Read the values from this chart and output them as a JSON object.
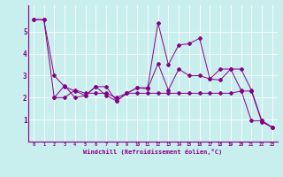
{
  "xlabel": "Windchill (Refroidissement éolien,°C)",
  "background_color": "#c8eeee",
  "line_color": "#880088",
  "xlim": [
    -0.5,
    23.5
  ],
  "ylim": [
    0,
    6.2
  ],
  "xticks": [
    0,
    1,
    2,
    3,
    4,
    5,
    6,
    7,
    8,
    9,
    10,
    11,
    12,
    13,
    14,
    15,
    16,
    17,
    18,
    19,
    20,
    21,
    22,
    23
  ],
  "yticks": [
    1,
    2,
    3,
    4,
    5
  ],
  "series1_x": [
    0,
    1,
    2,
    3,
    4,
    5,
    6,
    7,
    8,
    9,
    10,
    11,
    12,
    13,
    14,
    15,
    16,
    17,
    18,
    19,
    20,
    21,
    22,
    23
  ],
  "series1_y": [
    5.55,
    5.55,
    3.0,
    2.5,
    2.3,
    2.1,
    2.5,
    2.5,
    1.85,
    2.2,
    2.2,
    2.2,
    2.2,
    2.2,
    2.2,
    2.2,
    2.2,
    2.2,
    2.2,
    2.2,
    2.3,
    2.3,
    0.9,
    0.65
  ],
  "series2_x": [
    0,
    1,
    2,
    3,
    4,
    5,
    6,
    7,
    8,
    9,
    10,
    11,
    12,
    13,
    14,
    15,
    16,
    17,
    18,
    19,
    20,
    21,
    22,
    23
  ],
  "series2_y": [
    5.55,
    5.55,
    2.0,
    2.0,
    2.35,
    2.2,
    2.2,
    2.2,
    2.0,
    2.2,
    2.45,
    2.45,
    5.4,
    3.5,
    4.4,
    4.45,
    4.7,
    2.85,
    2.8,
    3.3,
    3.3,
    2.35,
    0.95,
    0.65
  ],
  "series3_x": [
    2,
    3,
    4,
    5,
    6,
    7,
    8,
    9,
    10,
    11,
    12,
    13,
    14,
    15,
    16,
    17,
    18,
    19,
    20,
    21,
    22,
    23
  ],
  "series3_y": [
    2.0,
    2.55,
    2.0,
    2.1,
    2.5,
    2.1,
    1.85,
    2.2,
    2.45,
    2.4,
    3.55,
    2.35,
    3.3,
    3.0,
    3.0,
    2.85,
    3.3,
    3.3,
    2.35,
    0.95,
    0.95,
    0.65
  ]
}
